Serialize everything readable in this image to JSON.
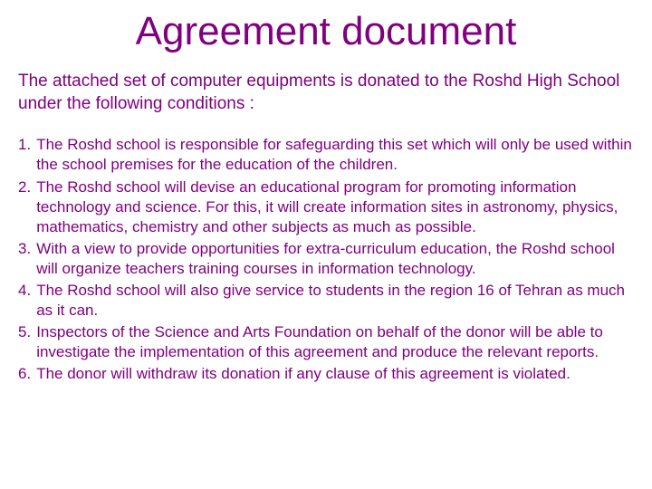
{
  "title": {
    "text": "Agreement document",
    "color": "#800080",
    "fontsize": 44
  },
  "intro": {
    "text": "The attached set of computer equipments is donated to the Roshd High School under the following conditions :",
    "color": "#800080",
    "fontsize": 19
  },
  "list": {
    "color": "#800080",
    "fontsize": 17,
    "items": [
      {
        "num": "1.",
        "text": "The Roshd school is responsible for safeguarding this set which will only be used within the school premises for the education of the children."
      },
      {
        "num": "2.",
        "text": "The Roshd school will devise an educational program for promoting information technology and science. For this, it will create information sites in astronomy, physics, mathematics, chemistry and other subjects as much as possible."
      },
      {
        "num": "3.",
        "text": "With a view to provide opportunities for extra-curriculum education, the Roshd school will organize teachers training courses in information technology."
      },
      {
        "num": "4.",
        "text": "The Roshd school will also give service to students in the region 16 of Tehran as much as it can."
      },
      {
        "num": "5.",
        "text": "Inspectors of the Science and Arts Foundation on behalf of the donor will be able to investigate the implementation of this agreement and produce the relevant reports."
      },
      {
        "num": "6.",
        "text": "The donor will withdraw its donation if any clause of this agreement is violated."
      }
    ]
  },
  "colors": {
    "background": "#ffffff",
    "text": "#800080"
  }
}
